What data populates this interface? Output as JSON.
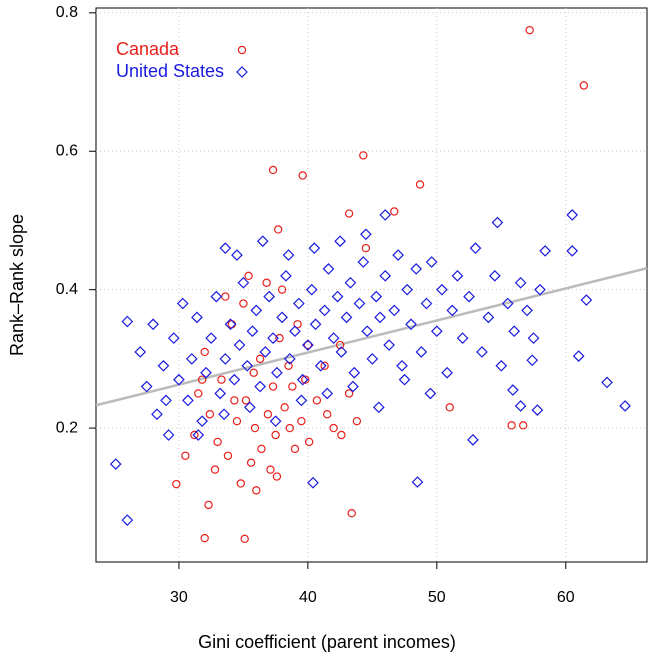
{
  "chart_data": {
    "type": "scatter",
    "x_label": "Gini coefficient (parent incomes)",
    "y_label": "Rank–Rank slope",
    "xlim": [
      23.57,
      66.3
    ],
    "ylim": [
      0.0065,
      0.807
    ],
    "xticks": [
      30,
      40,
      50,
      60
    ],
    "yticks": [
      0.2,
      0.4,
      0.6,
      0.8
    ],
    "grid": true,
    "legend_location": "top-left",
    "fit": {
      "color": "#bbbbbb",
      "x": [
        23.57,
        66.3
      ],
      "y": [
        0.233,
        0.431
      ]
    },
    "series": [
      {
        "name": "Canada",
        "color": "#e8201c",
        "marker": "circle",
        "x": [
          57.2,
          61.4,
          44.3,
          39.6,
          37.3,
          48.7,
          43.2,
          46.7,
          37.7,
          43.4,
          32.0,
          35.1,
          32.3,
          29.8,
          55.8,
          56.7,
          51.0,
          31.5,
          32.4,
          33.0,
          33.8,
          34.5,
          35.2,
          35.8,
          36.3,
          36.9,
          37.5,
          38.2,
          38.8,
          39.5,
          40.1,
          40.7,
          41.3,
          42.0,
          42.6,
          43.2,
          32.0,
          33.3,
          34.1,
          35.0,
          35.6,
          36.4,
          37.1,
          37.8,
          38.5,
          39.2,
          40.0,
          30.5,
          31.2,
          32.8,
          34.8,
          36.0,
          37.6,
          38.6,
          39.8,
          41.5,
          43.8,
          35.4,
          36.8,
          38.0,
          33.6,
          31.8,
          34.3,
          35.9,
          37.3,
          39.0,
          42.5,
          44.5
        ],
        "values": [
          0.775,
          0.695,
          0.594,
          0.565,
          0.573,
          0.552,
          0.51,
          0.513,
          0.487,
          0.077,
          0.041,
          0.04,
          0.089,
          0.119,
          0.204,
          0.204,
          0.23,
          0.25,
          0.22,
          0.18,
          0.16,
          0.21,
          0.24,
          0.28,
          0.3,
          0.22,
          0.19,
          0.23,
          0.26,
          0.21,
          0.18,
          0.24,
          0.29,
          0.2,
          0.19,
          0.25,
          0.31,
          0.27,
          0.35,
          0.38,
          0.15,
          0.17,
          0.14,
          0.33,
          0.29,
          0.35,
          0.32,
          0.16,
          0.19,
          0.14,
          0.12,
          0.11,
          0.13,
          0.2,
          0.27,
          0.22,
          0.21,
          0.42,
          0.41,
          0.4,
          0.39,
          0.27,
          0.24,
          0.2,
          0.26,
          0.17,
          0.32,
          0.46
        ]
      },
      {
        "name": "United States",
        "color": "#1a1ae0",
        "marker": "diamond",
        "x": [
          26.0,
          25.1,
          64.6,
          63.2,
          61.0,
          60.5,
          60.5,
          61.6,
          48.5,
          40.4,
          52.8,
          26.0,
          33.6,
          46.0,
          54.7,
          58.4,
          57.4,
          57.8,
          56.5,
          55.9,
          27.0,
          27.5,
          28.0,
          28.3,
          28.8,
          29.2,
          29.6,
          30.0,
          30.3,
          30.7,
          31.0,
          31.4,
          31.8,
          32.1,
          32.5,
          32.9,
          33.2,
          33.6,
          34.0,
          34.3,
          34.7,
          35.0,
          35.3,
          35.7,
          36.0,
          36.3,
          36.7,
          37.0,
          37.3,
          37.6,
          38.0,
          38.3,
          38.6,
          39.0,
          39.3,
          39.6,
          40.0,
          40.3,
          40.6,
          41.0,
          41.3,
          41.6,
          42.0,
          42.3,
          42.6,
          43.0,
          43.3,
          43.6,
          44.0,
          44.3,
          44.6,
          45.0,
          45.3,
          45.6,
          46.0,
          46.3,
          46.7,
          47.0,
          47.3,
          47.7,
          48.0,
          48.4,
          48.8,
          49.2,
          49.6,
          50.0,
          50.4,
          50.8,
          51.2,
          51.6,
          52.0,
          52.5,
          53.0,
          53.5,
          54.0,
          54.5,
          55.0,
          55.5,
          56.0,
          56.5,
          57.0,
          57.5,
          58.0,
          29.0,
          31.5,
          33.5,
          35.5,
          37.5,
          39.5,
          41.5,
          43.5,
          45.5,
          47.5,
          49.5,
          34.5,
          36.5,
          38.5,
          40.5,
          42.5,
          44.5
        ],
        "values": [
          0.067,
          0.148,
          0.232,
          0.266,
          0.304,
          0.508,
          0.456,
          0.385,
          0.122,
          0.121,
          0.183,
          0.354,
          0.46,
          0.508,
          0.497,
          0.456,
          0.298,
          0.226,
          0.232,
          0.255,
          0.31,
          0.26,
          0.35,
          0.22,
          0.29,
          0.19,
          0.33,
          0.27,
          0.38,
          0.24,
          0.3,
          0.36,
          0.21,
          0.28,
          0.33,
          0.39,
          0.25,
          0.3,
          0.35,
          0.27,
          0.32,
          0.41,
          0.29,
          0.34,
          0.37,
          0.26,
          0.31,
          0.39,
          0.33,
          0.28,
          0.36,
          0.42,
          0.3,
          0.34,
          0.38,
          0.27,
          0.32,
          0.4,
          0.35,
          0.29,
          0.37,
          0.43,
          0.33,
          0.39,
          0.31,
          0.36,
          0.41,
          0.28,
          0.38,
          0.44,
          0.34,
          0.3,
          0.39,
          0.36,
          0.42,
          0.32,
          0.37,
          0.45,
          0.29,
          0.4,
          0.35,
          0.43,
          0.31,
          0.38,
          0.44,
          0.34,
          0.4,
          0.28,
          0.37,
          0.42,
          0.33,
          0.39,
          0.46,
          0.31,
          0.36,
          0.42,
          0.29,
          0.38,
          0.34,
          0.41,
          0.37,
          0.33,
          0.4,
          0.24,
          0.19,
          0.22,
          0.23,
          0.21,
          0.24,
          0.25,
          0.26,
          0.23,
          0.27,
          0.25,
          0.45,
          0.47,
          0.45,
          0.46,
          0.47,
          0.48
        ]
      }
    ]
  }
}
